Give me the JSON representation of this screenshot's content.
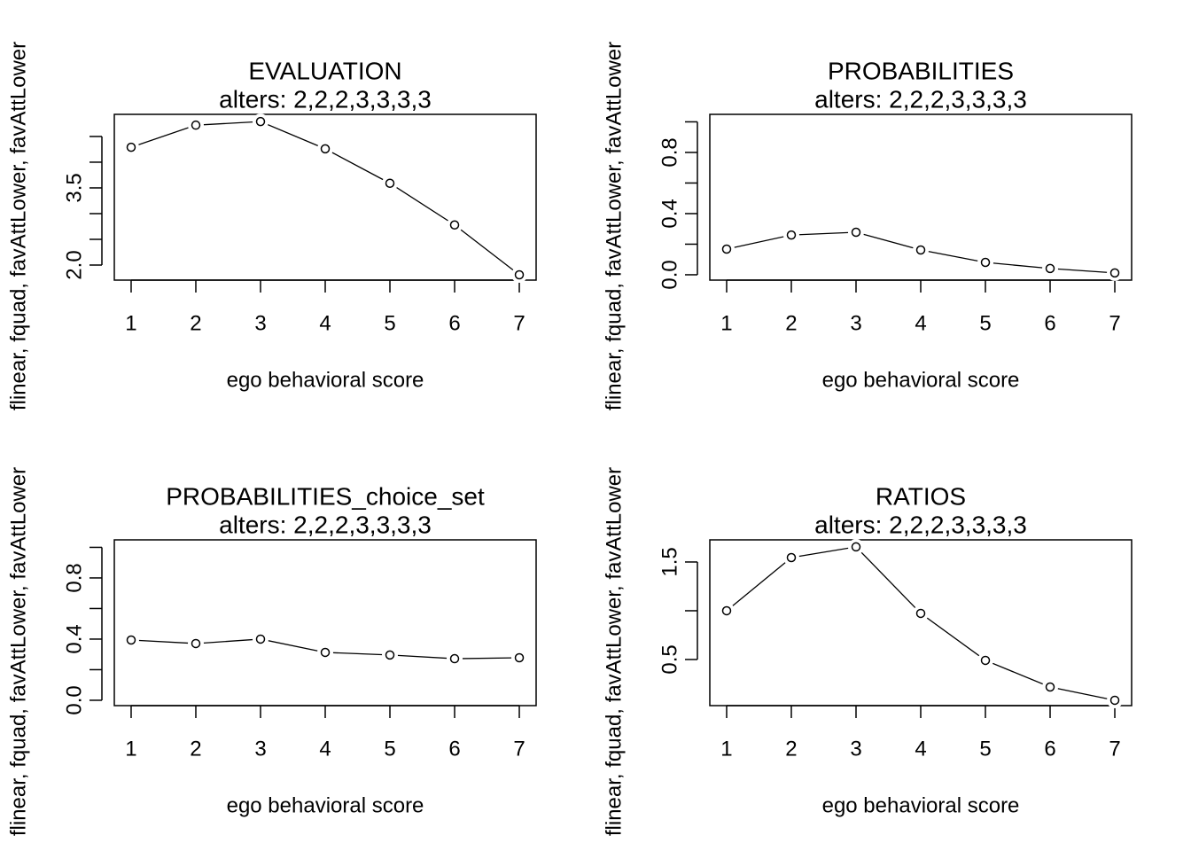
{
  "chart_data": [
    {
      "type": "line",
      "title": "EVALUATION",
      "subtitle": "alters: 2,2,2,3,3,3,3",
      "xlabel": "ego behavioral score",
      "ylabel": "flinear, fquad, favAttLower, favAttLower",
      "x": [
        1,
        2,
        3,
        4,
        5,
        6,
        7
      ],
      "values": [
        4.29,
        4.72,
        4.79,
        4.26,
        3.59,
        2.78,
        1.81
      ],
      "xlim": [
        0.74,
        7.26
      ],
      "xticks": [
        1,
        2,
        3,
        4,
        5,
        6,
        7
      ],
      "ylim": [
        1.707,
        4.93
      ],
      "yticks": [
        {
          "value": 2,
          "label": "2.0"
        },
        3.5
      ],
      "yticks_unlabeled": [
        2.5,
        3,
        4,
        4.5
      ],
      "color": "#000000",
      "marker": "circle"
    },
    {
      "type": "line",
      "title": "PROBABILITIES",
      "subtitle": "alters: 2,2,2,3,3,3,3",
      "xlabel": "ego behavioral score",
      "ylabel": "flinear, fquad, favAttLower, favAttLower",
      "x": [
        1,
        2,
        3,
        4,
        5,
        6,
        7
      ],
      "values": [
        0.168,
        0.26,
        0.278,
        0.162,
        0.081,
        0.041,
        0.012
      ],
      "xlim": [
        0.74,
        7.26
      ],
      "xticks": [
        1,
        2,
        3,
        4,
        5,
        6,
        7
      ],
      "ylim": [
        -0.035,
        1.049
      ],
      "yticks": [
        {
          "value": 0,
          "label": "0.0"
        },
        0.4,
        0.8
      ],
      "yticks_unlabeled": [
        0.2,
        0.6,
        1
      ],
      "color": "#000000",
      "marker": "circle"
    },
    {
      "type": "line",
      "title": "PROBABILITIES_choice_set",
      "subtitle": "alters: 2,2,2,3,3,3,3",
      "xlabel": "ego behavioral score",
      "ylabel": "flinear, fquad, favAttLower, favAttLower",
      "x": [
        1,
        2,
        3,
        4,
        5,
        6,
        7
      ],
      "values": [
        0.394,
        0.371,
        0.4,
        0.313,
        0.296,
        0.272,
        0.278
      ],
      "xlim": [
        0.74,
        7.26
      ],
      "xticks": [
        1,
        2,
        3,
        4,
        5,
        6,
        7
      ],
      "ylim": [
        -0.035,
        1.049
      ],
      "yticks": [
        {
          "value": 0,
          "label": "0.0"
        },
        0.4,
        0.8
      ],
      "yticks_unlabeled": [
        0.2,
        0.6,
        1
      ],
      "color": "#000000",
      "marker": "circle"
    },
    {
      "type": "line",
      "title": "RATIOS",
      "subtitle": "alters: 2,2,2,3,3,3,3",
      "xlabel": "ego behavioral score",
      "ylabel": "flinear, fquad, favAttLower, favAttLower",
      "x": [
        1,
        2,
        3,
        4,
        5,
        6,
        7
      ],
      "values": [
        1.0,
        1.545,
        1.655,
        0.973,
        0.491,
        0.218,
        0.082
      ],
      "xlim": [
        0.74,
        7.26
      ],
      "xticks": [
        1,
        2,
        3,
        4,
        5,
        6,
        7
      ],
      "ylim": [
        0.027,
        1.727
      ],
      "yticks": [
        0.5,
        1.5
      ],
      "yticks_unlabeled": [
        1
      ],
      "color": "#000000",
      "marker": "circle"
    }
  ]
}
